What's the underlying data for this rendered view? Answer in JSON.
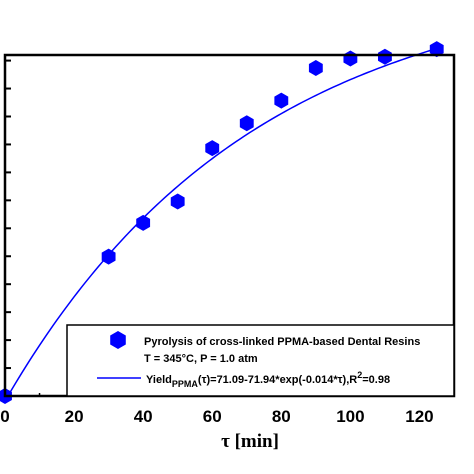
{
  "chart_data": {
    "type": "scatter",
    "title": "",
    "xlabel": "τ [min]",
    "ylabel": "",
    "xlim": [
      0,
      130
    ],
    "ylim": [
      0,
      57.5
    ],
    "x_ticks": [
      "0",
      "20",
      "40",
      "60",
      "80",
      "100",
      "120"
    ],
    "grid": false,
    "legend_position": "bottom-right",
    "series": [
      {
        "name": "Pyrolysis of cross-linked PPMA-based Dental Resins",
        "kind": "scatter",
        "marker": "hexagon",
        "color": "#0000ff",
        "x": [
          0,
          30,
          40,
          50,
          60,
          70,
          80,
          90,
          100,
          110,
          125
        ],
        "y": [
          0,
          23.5,
          29.2,
          32.8,
          41.8,
          46.0,
          49.8,
          55.3,
          56.9,
          57.2,
          58.5
        ]
      },
      {
        "name": "Yield_PPMA(τ)=71.09-71.94*exp(-0.014*τ),R²=0.98",
        "kind": "line",
        "color": "#0000ff",
        "formula": {
          "a": 71.09,
          "b": 71.94,
          "k": 0.014
        },
        "x_range": [
          0,
          125
        ]
      }
    ],
    "legend": {
      "line1": "Pyrolysis of cross-linked PPMA-based Dental Resins",
      "line2": "T = 345°C, P = 1.0 atm",
      "fit_prefix": "Yield",
      "fit_sub": "PPMA",
      "fit_main": "(τ)=71.09-71.94*exp(-0.014*τ),R",
      "fit_sup": "2",
      "fit_tail": "=0.98"
    }
  }
}
